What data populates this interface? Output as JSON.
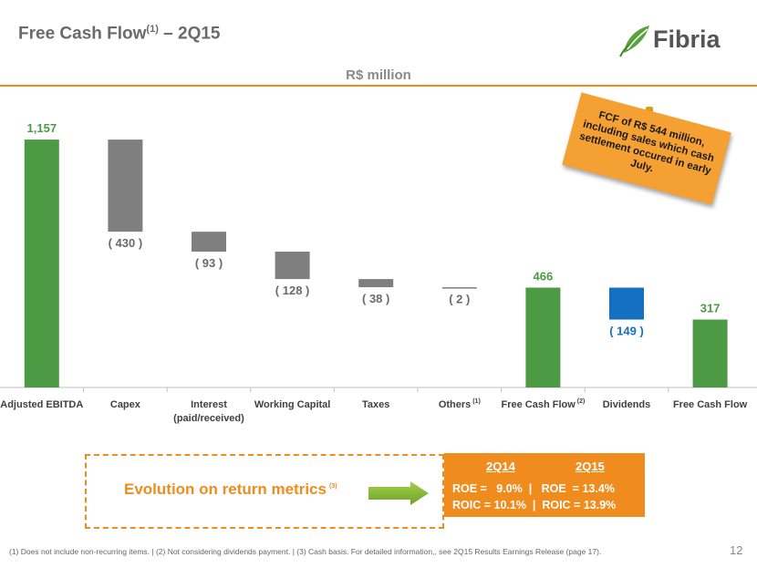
{
  "header": {
    "title_main": "Free Cash Flow",
    "title_sup": "(1)",
    "title_rest": " – 2Q15",
    "brand": "Fibria",
    "unit": "R$ million"
  },
  "colors": {
    "green": "#4d9a45",
    "gray": "#7f7f7f",
    "blue": "#1570c2",
    "orange": "#f08c1e",
    "axis_text": "#404040"
  },
  "chart_data": {
    "type": "waterfall",
    "categories": [
      {
        "label": "Adjusted EBITDA",
        "sup": ""
      },
      {
        "label": "Capex",
        "sup": ""
      },
      {
        "label": "Interest",
        "label2": "(paid/received)",
        "sup": ""
      },
      {
        "label": "Working Capital",
        "sup": ""
      },
      {
        "label": "Taxes",
        "sup": ""
      },
      {
        "label": "Others",
        "sup": "(1)"
      },
      {
        "label": "Free Cash Flow",
        "sup": "(2)"
      },
      {
        "label": "Dividends",
        "sup": ""
      },
      {
        "label": "Free Cash Flow",
        "sup": ""
      }
    ],
    "bars": [
      {
        "kind": "total",
        "value": 1157,
        "label": "1,157",
        "color": "green"
      },
      {
        "kind": "delta",
        "value": -430,
        "label": "( 430 )",
        "color": "gray"
      },
      {
        "kind": "delta",
        "value": -93,
        "label": "( 93 )",
        "color": "gray"
      },
      {
        "kind": "delta",
        "value": -128,
        "label": "( 128 )",
        "color": "gray"
      },
      {
        "kind": "delta",
        "value": -38,
        "label": "( 38 )",
        "color": "gray"
      },
      {
        "kind": "delta",
        "value": -2,
        "label": "( 2 )",
        "color": "gray"
      },
      {
        "kind": "total",
        "value": 466,
        "label": "466",
        "color": "green"
      },
      {
        "kind": "delta",
        "value": -149,
        "label": "( 149 )",
        "color": "blue"
      },
      {
        "kind": "total",
        "value": 317,
        "label": "317",
        "color": "green"
      }
    ],
    "ylim": [
      0,
      1200
    ],
    "unit": "R$ million"
  },
  "note": "FCF of R$ 544 million, including sales which cash settlement occured in early July.",
  "metrics": {
    "label": "Evolution on return metrics",
    "label_sup": "(3)",
    "col1_header": "2Q14",
    "col2_header": "2Q15",
    "row1": "ROE =   9.0%  |   ROE  = 13.4%",
    "row2": "ROIC = 10.1%  |  ROIC = 13.9%"
  },
  "footer": {
    "note": "(1)    Does not include non-recurring items.   |   (2) Not considering dividends payment.    |   (3) Cash basis. For detailed information,, see 2Q15 Results Earnings Release (page 17).",
    "page": "12"
  }
}
